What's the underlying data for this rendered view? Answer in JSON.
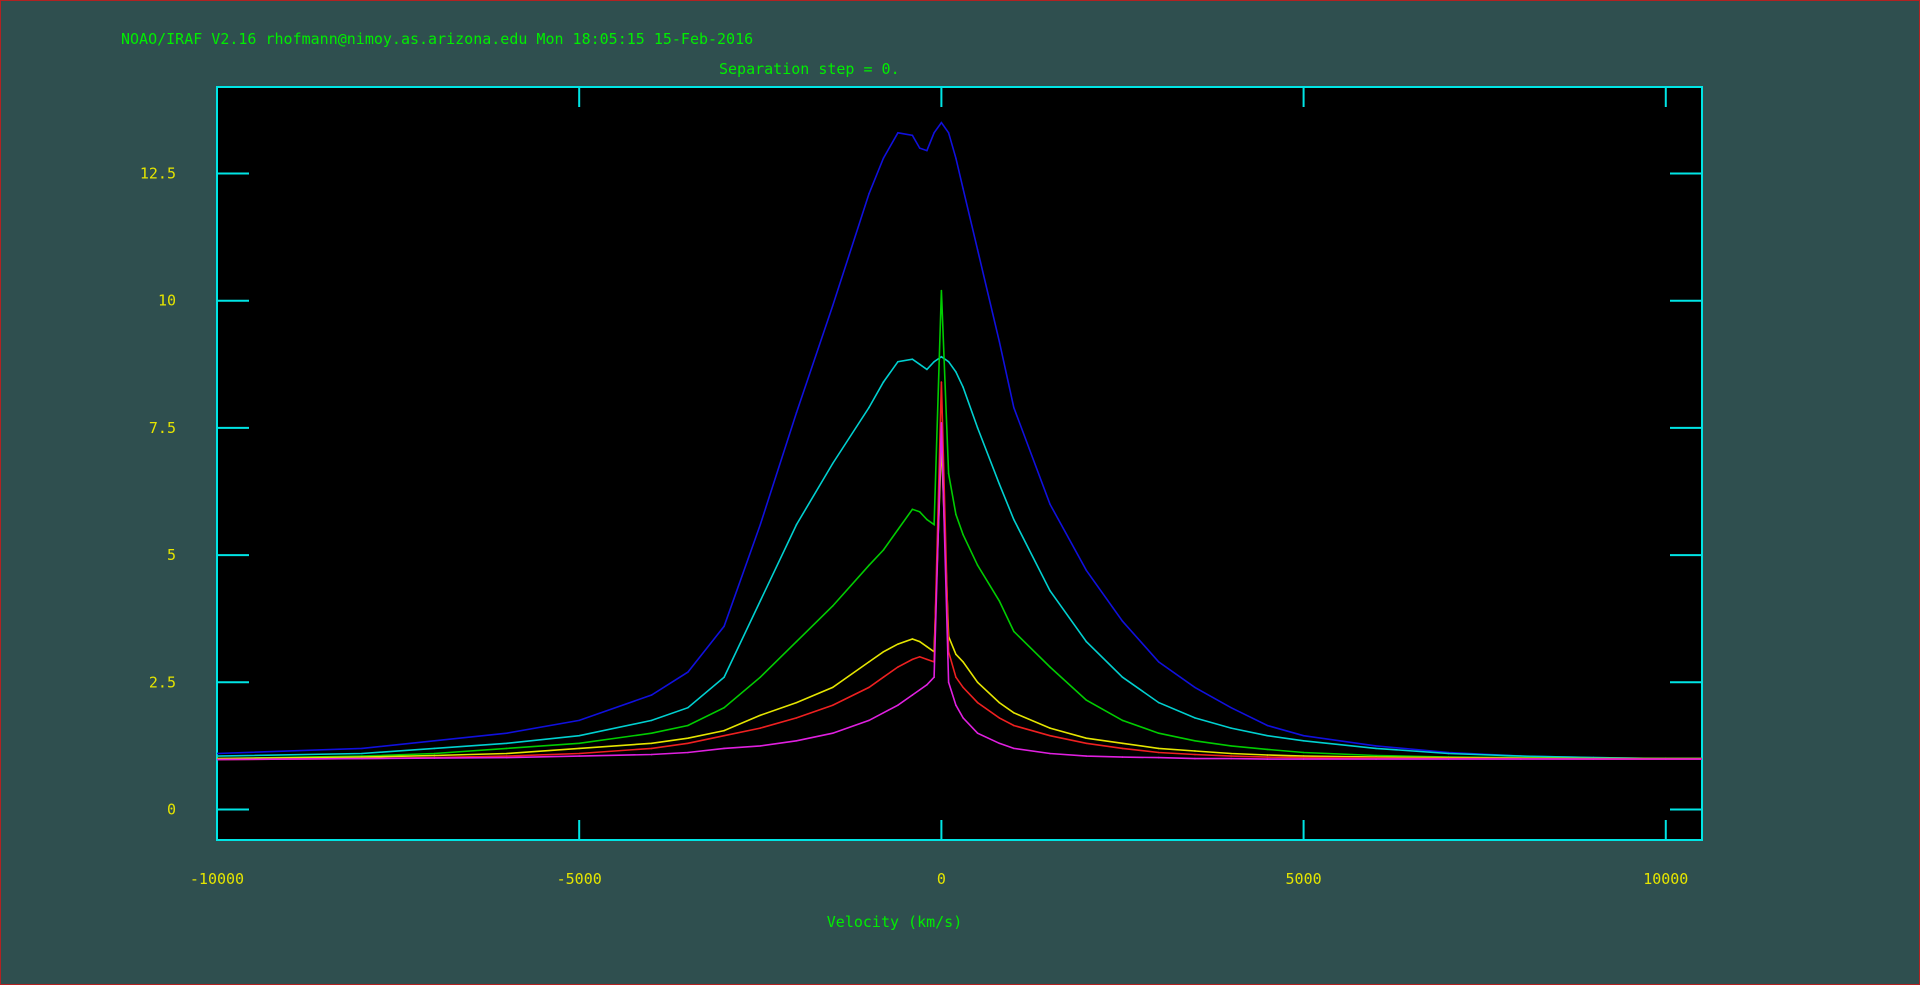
{
  "header": {
    "banner": "NOAO/IRAF V2.16 rhofmann@nimoy.as.arizona.edu Mon 18:05:15 15-Feb-2016"
  },
  "colors": {
    "background": "#2f4f4f",
    "axes": "#00e5e5",
    "tick_labels": "#e5e500",
    "text": "#00ee00",
    "plot_bg": "#000000"
  },
  "chart_data": {
    "type": "line",
    "title": "Separation step = 0.",
    "xlabel": "Velocity (km/s)",
    "ylabel": "",
    "xlim": [
      -10000,
      10500
    ],
    "ylim": [
      -0.6,
      14.2
    ],
    "x_ticks": [
      -10000,
      -5000,
      0,
      5000,
      10000
    ],
    "x_tick_labels": [
      "-10000",
      "-5000",
      "0",
      "5000",
      "10000"
    ],
    "y_ticks": [
      0,
      2.5,
      5,
      7.5,
      10,
      12.5
    ],
    "y_tick_labels": [
      "0",
      "2.5",
      "5",
      "7.5",
      "10",
      "12.5"
    ],
    "grid": false,
    "legend": "none",
    "x": [
      -10000,
      -8000,
      -7000,
      -6000,
      -5000,
      -4000,
      -3500,
      -3000,
      -2500,
      -2000,
      -1500,
      -1000,
      -800,
      -600,
      -400,
      -300,
      -200,
      -100,
      0,
      100,
      200,
      300,
      500,
      800,
      1000,
      1500,
      2000,
      2500,
      3000,
      3500,
      4000,
      4500,
      5000,
      6000,
      7000,
      8000,
      9000,
      10000,
      10500
    ],
    "series": [
      {
        "color": "#1010dd",
        "values": [
          1.1,
          1.2,
          1.35,
          1.5,
          1.75,
          2.25,
          2.7,
          3.6,
          5.6,
          7.8,
          9.9,
          12.1,
          12.8,
          13.3,
          13.25,
          13.0,
          12.95,
          13.3,
          13.5,
          13.3,
          12.8,
          12.2,
          11.0,
          9.2,
          7.9,
          6.0,
          4.7,
          3.7,
          2.9,
          2.4,
          2.0,
          1.65,
          1.45,
          1.25,
          1.12,
          1.05,
          1.02,
          1.0,
          1.0
        ]
      },
      {
        "color": "#00d0d0",
        "values": [
          1.05,
          1.1,
          1.2,
          1.3,
          1.45,
          1.75,
          2.0,
          2.6,
          4.1,
          5.6,
          6.8,
          7.9,
          8.4,
          8.8,
          8.85,
          8.75,
          8.65,
          8.8,
          8.9,
          8.8,
          8.6,
          8.3,
          7.5,
          6.4,
          5.7,
          4.3,
          3.3,
          2.6,
          2.1,
          1.8,
          1.6,
          1.45,
          1.35,
          1.2,
          1.1,
          1.05,
          1.02,
          1.0,
          1.0
        ]
      },
      {
        "color": "#00cc00",
        "values": [
          1.0,
          1.05,
          1.1,
          1.2,
          1.3,
          1.5,
          1.65,
          2.0,
          2.6,
          3.3,
          4.0,
          4.8,
          5.1,
          5.5,
          5.9,
          5.85,
          5.7,
          5.6,
          10.2,
          6.6,
          5.8,
          5.4,
          4.8,
          4.1,
          3.5,
          2.8,
          2.15,
          1.75,
          1.5,
          1.35,
          1.25,
          1.18,
          1.12,
          1.06,
          1.03,
          1.02,
          1.0,
          1.0,
          1.0
        ]
      },
      {
        "color": "#e5e500",
        "values": [
          1.0,
          1.03,
          1.06,
          1.1,
          1.2,
          1.3,
          1.4,
          1.55,
          1.85,
          2.1,
          2.4,
          2.9,
          3.1,
          3.25,
          3.35,
          3.3,
          3.2,
          3.1,
          7.2,
          3.4,
          3.05,
          2.9,
          2.5,
          2.1,
          1.9,
          1.6,
          1.4,
          1.3,
          1.2,
          1.15,
          1.1,
          1.07,
          1.05,
          1.03,
          1.02,
          1.01,
          1.0,
          1.0,
          1.0
        ]
      },
      {
        "color": "#ee2020",
        "values": [
          0.98,
          1.0,
          1.02,
          1.05,
          1.1,
          1.2,
          1.3,
          1.45,
          1.6,
          1.8,
          2.05,
          2.4,
          2.6,
          2.8,
          2.95,
          3.0,
          2.95,
          2.9,
          8.4,
          3.1,
          2.6,
          2.4,
          2.1,
          1.8,
          1.65,
          1.45,
          1.3,
          1.2,
          1.12,
          1.08,
          1.05,
          1.03,
          1.02,
          1.01,
          1.0,
          1.0,
          0.99,
          0.99,
          0.99
        ]
      },
      {
        "color": "#e020e0",
        "values": [
          0.98,
          1.0,
          1.01,
          1.02,
          1.05,
          1.08,
          1.12,
          1.2,
          1.25,
          1.35,
          1.5,
          1.75,
          1.9,
          2.05,
          2.25,
          2.35,
          2.45,
          2.6,
          7.6,
          2.5,
          2.05,
          1.8,
          1.5,
          1.3,
          1.2,
          1.1,
          1.05,
          1.03,
          1.02,
          1.0,
          1.0,
          0.99,
          0.99,
          0.99,
          0.99,
          0.99,
          0.99,
          0.99,
          0.99
        ]
      }
    ]
  }
}
